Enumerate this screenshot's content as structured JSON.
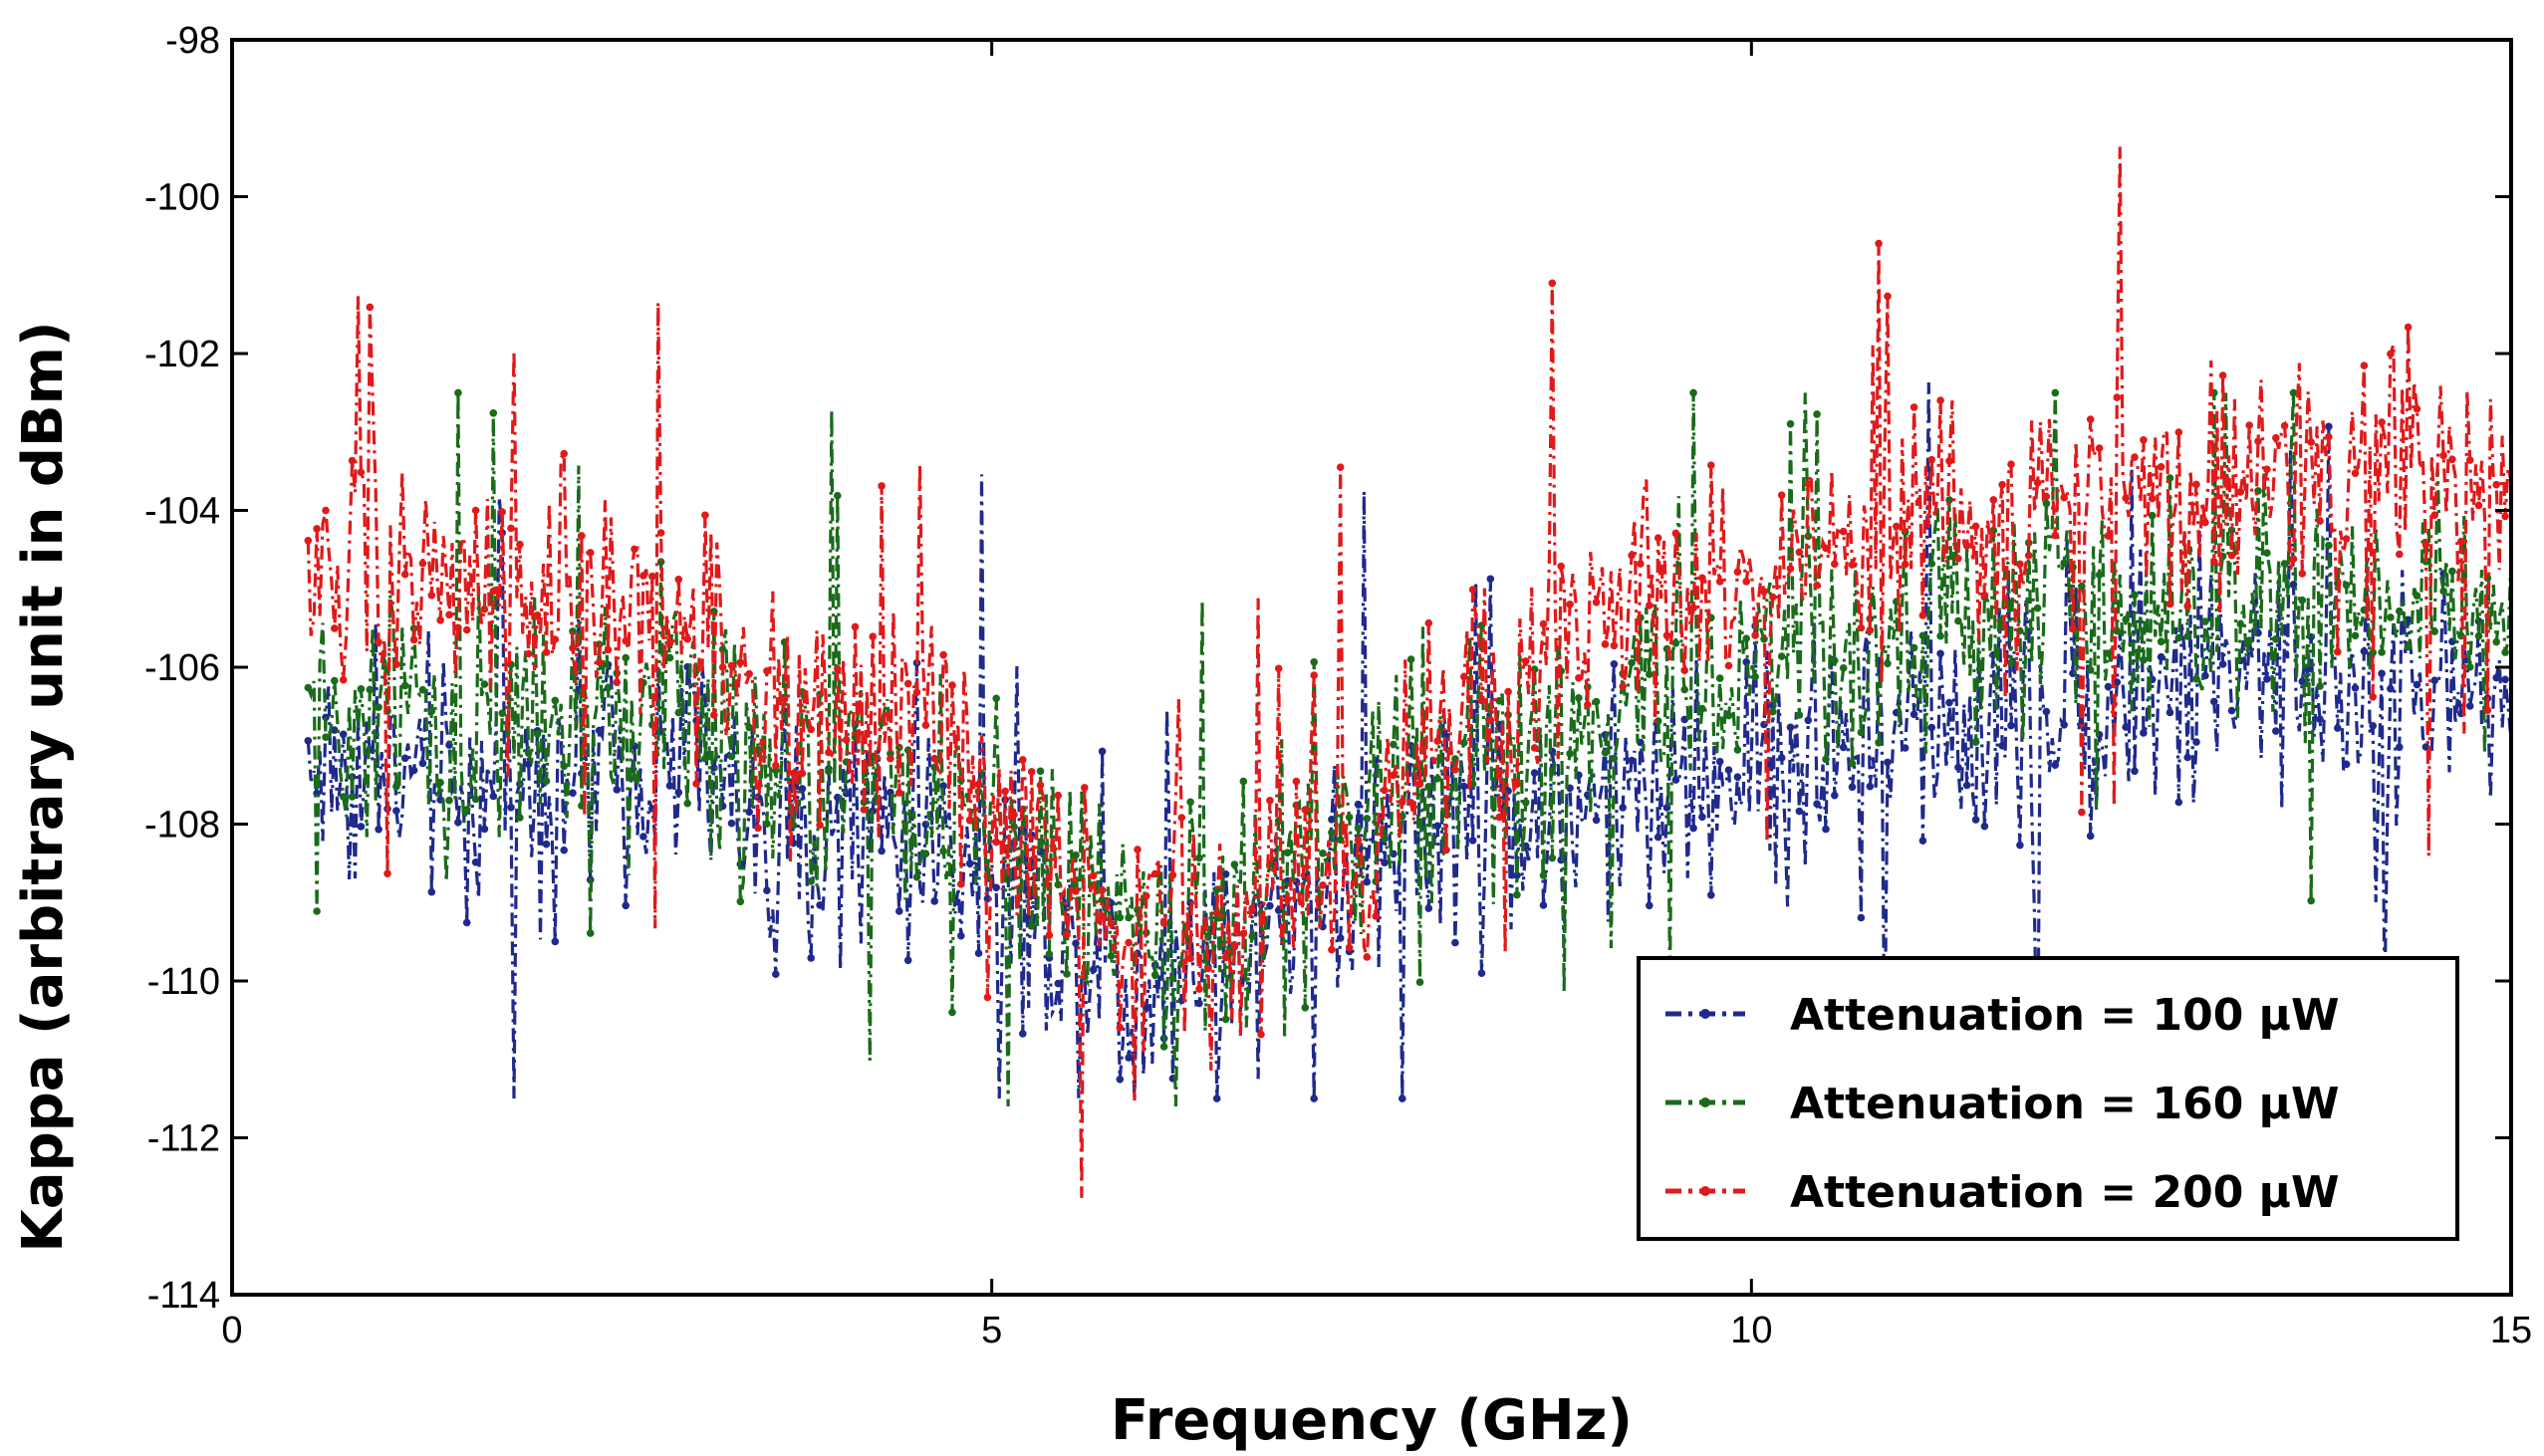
{
  "chart_data": {
    "type": "line",
    "title": "",
    "xlabel": "Frequency (GHz)",
    "ylabel": "Kappa (arbitrary unit in dBm)",
    "xlim": [
      0,
      15
    ],
    "ylim": [
      -114,
      -98
    ],
    "xticks": [
      "0",
      "5",
      "10",
      "15"
    ],
    "yticks": [
      "-98",
      "-100",
      "-102",
      "-104",
      "-106",
      "-108",
      "-110",
      "-112",
      "-114"
    ],
    "grid": false,
    "legend_position": "bottom-right",
    "x_range_of_data": [
      0.5,
      15.0
    ],
    "samples_per_series": 750,
    "series": [
      {
        "name": "Attenuation = 100 µW",
        "color": "#1f2a8c",
        "line_style": "dash-dot",
        "marker": "dot",
        "trend_x": [
          0.5,
          1.5,
          2.5,
          3.0,
          3.5,
          4.0,
          4.5,
          5.0,
          5.5,
          6.0,
          6.5,
          7.0,
          7.5,
          8.0,
          8.5,
          9.0,
          9.5,
          10.0,
          11.0,
          12.0,
          13.0,
          14.0,
          15.0
        ],
        "trend_y": [
          -107.2,
          -107.6,
          -107.2,
          -107.0,
          -108.4,
          -108.0,
          -108.0,
          -108.6,
          -109.6,
          -110.0,
          -109.6,
          -109.0,
          -108.4,
          -107.8,
          -107.8,
          -107.8,
          -107.6,
          -107.2,
          -106.8,
          -106.6,
          -106.4,
          -106.2,
          -106.4
        ],
        "noise_amplitude": 1.1,
        "min": -111.5,
        "max": -102.3
      },
      {
        "name": "Attenuation = 160 µW",
        "color": "#1a6b1a",
        "line_style": "dash-dot",
        "marker": "dot",
        "trend_x": [
          0.5,
          1.5,
          2.5,
          3.0,
          3.5,
          4.0,
          4.5,
          5.0,
          5.5,
          6.0,
          6.5,
          7.0,
          7.5,
          8.0,
          8.5,
          9.0,
          9.5,
          10.0,
          11.0,
          12.0,
          13.0,
          14.0,
          15.0
        ],
        "trend_y": [
          -106.6,
          -107.0,
          -106.6,
          -106.4,
          -107.6,
          -107.4,
          -107.4,
          -108.0,
          -109.0,
          -109.4,
          -109.2,
          -108.6,
          -108.0,
          -107.2,
          -107.0,
          -106.8,
          -106.4,
          -106.0,
          -105.6,
          -105.4,
          -105.2,
          -105.0,
          -105.2
        ],
        "noise_amplitude": 1.1,
        "min": -111.6,
        "max": -102.5
      },
      {
        "name": "Attenuation = 200 µW",
        "color": "#e01a1a",
        "line_style": "dash-dot",
        "marker": "dot",
        "trend_x": [
          0.5,
          1.5,
          2.5,
          3.0,
          3.5,
          4.0,
          4.5,
          5.0,
          5.5,
          6.0,
          6.5,
          7.0,
          7.5,
          8.0,
          8.5,
          9.0,
          9.5,
          10.0,
          11.0,
          12.0,
          13.0,
          14.0,
          15.0
        ],
        "trend_y": [
          -104.8,
          -105.2,
          -104.8,
          -105.2,
          -106.6,
          -106.6,
          -106.8,
          -107.6,
          -108.8,
          -109.4,
          -109.4,
          -108.8,
          -108.0,
          -106.8,
          -106.0,
          -105.6,
          -105.2,
          -104.8,
          -104.2,
          -104.0,
          -103.8,
          -103.6,
          -103.6
        ],
        "noise_amplitude": 1.1,
        "min": -112.8,
        "max": -99.1
      }
    ]
  }
}
